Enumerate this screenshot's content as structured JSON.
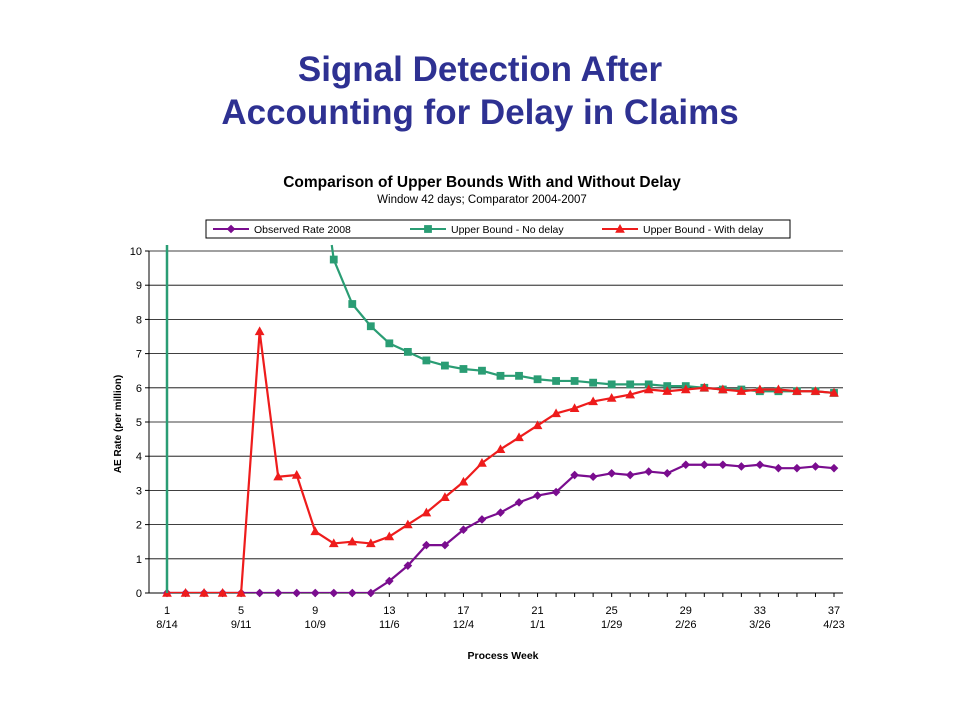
{
  "slide": {
    "title_line1": "Signal Detection After",
    "title_line2": "Accounting for Delay in Claims"
  },
  "chart_data": {
    "type": "line",
    "title": "Comparison of Upper Bounds With and Without Delay",
    "subtitle": "Window 42 days; Comparator 2004-2007",
    "xlabel": "Process Week",
    "ylabel": "AE Rate (per million)",
    "ylim": [
      0,
      10
    ],
    "yticks": [
      0,
      1,
      2,
      3,
      4,
      5,
      6,
      7,
      8,
      9,
      10
    ],
    "grid": true,
    "legend_position": "top",
    "x": [
      1,
      2,
      3,
      4,
      5,
      6,
      7,
      8,
      9,
      10,
      11,
      12,
      13,
      14,
      15,
      16,
      17,
      18,
      19,
      20,
      21,
      22,
      23,
      24,
      25,
      26,
      27,
      28,
      29,
      30,
      31,
      32,
      33,
      34,
      35,
      36,
      37
    ],
    "xticks": [
      {
        "x": 1,
        "week": "1",
        "date": "8/14"
      },
      {
        "x": 5,
        "week": "5",
        "date": "9/11"
      },
      {
        "x": 9,
        "week": "9",
        "date": "10/9"
      },
      {
        "x": 13,
        "week": "13",
        "date": "11/6"
      },
      {
        "x": 17,
        "week": "17",
        "date": "12/4"
      },
      {
        "x": 21,
        "week": "21",
        "date": "1/1"
      },
      {
        "x": 25,
        "week": "25",
        "date": "1/29"
      },
      {
        "x": 29,
        "week": "29",
        "date": "2/26"
      },
      {
        "x": 33,
        "week": "33",
        "date": "3/26"
      },
      {
        "x": 37,
        "week": "37",
        "date": "4/23"
      }
    ],
    "series": [
      {
        "name": "Observed Rate 2008",
        "color": "#7a0d8f",
        "marker": "diamond",
        "values": [
          0,
          0,
          0,
          0,
          0,
          0,
          0,
          0,
          0,
          0,
          0,
          0,
          0.35,
          0.8,
          1.4,
          1.4,
          1.85,
          2.15,
          2.35,
          2.65,
          2.85,
          2.95,
          3.45,
          3.4,
          3.5,
          3.45,
          3.55,
          3.5,
          3.75,
          3.75,
          3.75,
          3.7,
          3.75,
          3.65,
          3.65,
          3.7,
          3.65
        ]
      },
      {
        "name": "Upper Bound - No delay",
        "color": "#2a9d74",
        "marker": "square",
        "values": [
          null,
          null,
          null,
          null,
          null,
          null,
          null,
          null,
          null,
          9.75,
          8.45,
          7.8,
          7.3,
          7.05,
          6.8,
          6.65,
          6.55,
          6.5,
          6.35,
          6.35,
          6.25,
          6.2,
          6.2,
          6.15,
          6.1,
          6.1,
          6.1,
          6.05,
          6.05,
          6.0,
          5.95,
          5.95,
          5.9,
          5.9,
          5.9,
          5.9,
          5.85
        ]
      },
      {
        "name": "Upper Bound - With delay",
        "color": "#ee1c1c",
        "marker": "triangle",
        "values": [
          0,
          0,
          0,
          0,
          0,
          7.65,
          3.4,
          3.45,
          1.8,
          1.45,
          1.5,
          1.45,
          1.65,
          2.0,
          2.35,
          2.8,
          3.25,
          3.8,
          4.2,
          4.55,
          4.9,
          5.25,
          5.4,
          5.6,
          5.7,
          5.8,
          5.95,
          5.9,
          5.95,
          6.0,
          5.95,
          5.9,
          5.95,
          5.95,
          5.9,
          5.9,
          5.85
        ]
      }
    ]
  }
}
